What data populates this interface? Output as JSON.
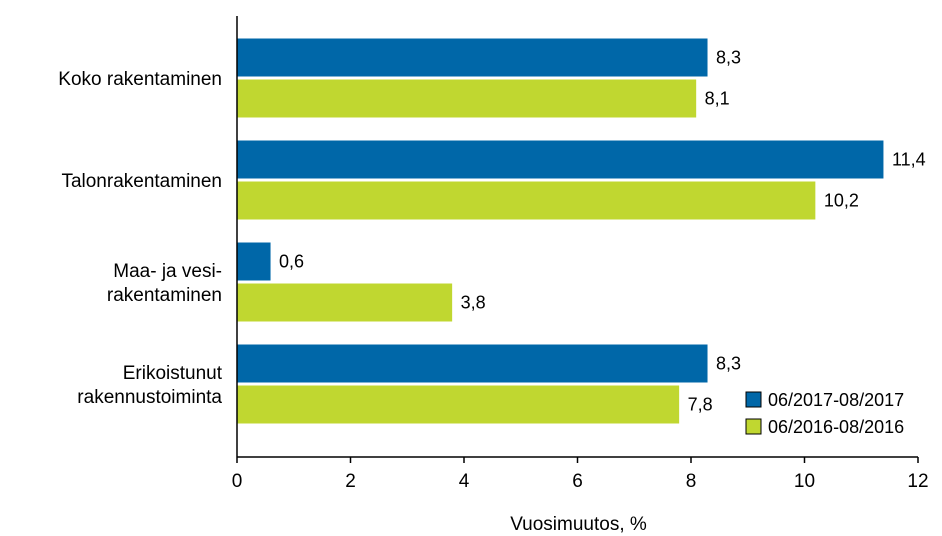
{
  "chart_data": {
    "type": "bar",
    "orientation": "horizontal",
    "categories": [
      [
        "Koko rakentaminen"
      ],
      [
        "Talonrakentaminen"
      ],
      [
        "Maa- ja vesi-",
        "rakentaminen"
      ],
      [
        "Erikoistunut",
        "rakennustoiminta"
      ]
    ],
    "series": [
      {
        "name": "06/2017-08/2017",
        "color": "#0067a8",
        "values": [
          8.3,
          11.4,
          0.6,
          8.3
        ],
        "labels": [
          "8,3",
          "11,4",
          "0,6",
          "8,3"
        ]
      },
      {
        "name": "06/2016-08/2016",
        "color": "#c0d730",
        "values": [
          8.1,
          10.2,
          3.8,
          7.8
        ],
        "labels": [
          "8,1",
          "10,2",
          "3,8",
          "7,8"
        ]
      }
    ],
    "xlabel": "Vuosimuutos, %",
    "xlim": [
      0,
      12
    ],
    "xticks": [
      0,
      2,
      4,
      6,
      8,
      10,
      12
    ],
    "xtick_labels": [
      "0",
      "2",
      "4",
      "6",
      "8",
      "10",
      "12"
    ],
    "grid": false,
    "legend_position": "bottom-right"
  }
}
